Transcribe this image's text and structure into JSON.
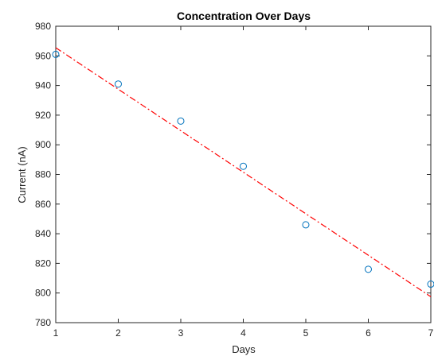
{
  "chart_data": {
    "type": "scatter",
    "title": "Concentration Over Days",
    "xlabel": "Days",
    "ylabel": "Current (nA)",
    "xlim": [
      1,
      7
    ],
    "ylim": [
      780,
      980
    ],
    "xticks": [
      1,
      2,
      3,
      4,
      5,
      6,
      7
    ],
    "yticks": [
      780,
      800,
      820,
      840,
      860,
      880,
      900,
      920,
      940,
      960,
      980
    ],
    "grid": false,
    "series": [
      {
        "type": "scatter",
        "marker": "circle-open",
        "color": "#0072BD",
        "x": [
          1,
          2,
          3,
          4,
          5,
          6,
          7
        ],
        "y": [
          961,
          941,
          916,
          885.5,
          846,
          816,
          806
        ]
      },
      {
        "type": "line",
        "style": "dash-dot",
        "color": "#FF0000",
        "x": [
          1,
          7
        ],
        "y": [
          965.5,
          797.5
        ]
      }
    ]
  }
}
